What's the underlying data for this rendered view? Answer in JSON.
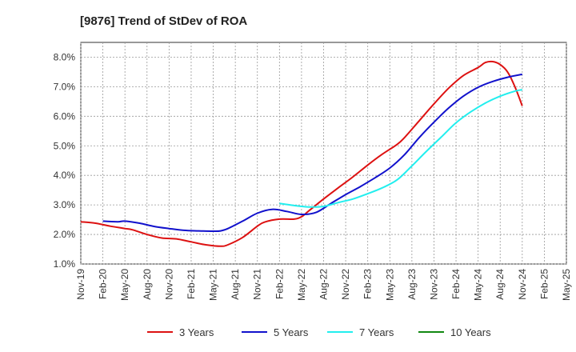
{
  "chart_data": {
    "type": "line",
    "title": "[9876]  Trend of StDev of ROA",
    "xlabel": "",
    "ylabel": "",
    "ylim": [
      1.0,
      8.5
    ],
    "y_ticks": [
      1.0,
      2.0,
      3.0,
      4.0,
      5.0,
      6.0,
      7.0,
      8.0
    ],
    "y_tick_labels": [
      "1.0%",
      "2.0%",
      "3.0%",
      "4.0%",
      "5.0%",
      "6.0%",
      "7.0%",
      "8.0%"
    ],
    "x_range": [
      "2019-11",
      "2025-05"
    ],
    "x_ticks": [
      "2019-11",
      "2020-02",
      "2020-05",
      "2020-08",
      "2020-11",
      "2021-02",
      "2021-05",
      "2021-08",
      "2021-11",
      "2022-02",
      "2022-05",
      "2022-08",
      "2022-11",
      "2023-02",
      "2023-05",
      "2023-08",
      "2023-11",
      "2024-02",
      "2024-05",
      "2024-08",
      "2024-11",
      "2025-02",
      "2025-05"
    ],
    "x_tick_labels": [
      "Nov-19",
      "Feb-20",
      "May-20",
      "Aug-20",
      "Nov-20",
      "Feb-21",
      "May-21",
      "Aug-21",
      "Nov-21",
      "Feb-22",
      "May-22",
      "Aug-22",
      "Nov-22",
      "Feb-23",
      "May-23",
      "Aug-23",
      "Nov-23",
      "Feb-24",
      "May-24",
      "Aug-24",
      "Nov-24",
      "Feb-25",
      "May-25"
    ],
    "grid": true,
    "legend_position": "bottom",
    "series": [
      {
        "name": "3 Years",
        "color": "#dd1111",
        "points": [
          [
            "2019-11",
            2.43
          ],
          [
            "2020-01",
            2.38
          ],
          [
            "2020-03",
            2.28
          ],
          [
            "2020-05",
            2.2
          ],
          [
            "2020-06",
            2.16
          ],
          [
            "2020-08",
            2.0
          ],
          [
            "2020-10",
            1.88
          ],
          [
            "2020-12",
            1.85
          ],
          [
            "2021-02",
            1.75
          ],
          [
            "2021-04",
            1.65
          ],
          [
            "2021-06",
            1.6
          ],
          [
            "2021-07",
            1.65
          ],
          [
            "2021-09",
            1.9
          ],
          [
            "2021-11",
            2.28
          ],
          [
            "2021-12",
            2.42
          ],
          [
            "2022-02",
            2.52
          ],
          [
            "2022-04",
            2.52
          ],
          [
            "2022-05",
            2.6
          ],
          [
            "2022-06",
            2.8
          ],
          [
            "2022-08",
            3.2
          ],
          [
            "2022-10",
            3.58
          ],
          [
            "2022-12",
            3.95
          ],
          [
            "2023-02",
            4.35
          ],
          [
            "2023-04",
            4.72
          ],
          [
            "2023-06",
            5.05
          ],
          [
            "2023-07",
            5.28
          ],
          [
            "2023-09",
            5.85
          ],
          [
            "2023-11",
            6.42
          ],
          [
            "2024-01",
            6.95
          ],
          [
            "2024-03",
            7.38
          ],
          [
            "2024-05",
            7.65
          ],
          [
            "2024-06",
            7.82
          ],
          [
            "2024-07",
            7.85
          ],
          [
            "2024-08",
            7.75
          ],
          [
            "2024-09",
            7.5
          ],
          [
            "2024-10",
            7.0
          ],
          [
            "2024-11",
            6.35
          ]
        ]
      },
      {
        "name": "5 Years",
        "color": "#1111cc",
        "points": [
          [
            "2020-02",
            2.45
          ],
          [
            "2020-04",
            2.43
          ],
          [
            "2020-05",
            2.45
          ],
          [
            "2020-07",
            2.38
          ],
          [
            "2020-09",
            2.27
          ],
          [
            "2020-11",
            2.2
          ],
          [
            "2021-01",
            2.14
          ],
          [
            "2021-03",
            2.12
          ],
          [
            "2021-05",
            2.11
          ],
          [
            "2021-06",
            2.12
          ],
          [
            "2021-07",
            2.2
          ],
          [
            "2021-09",
            2.45
          ],
          [
            "2021-11",
            2.72
          ],
          [
            "2022-01",
            2.85
          ],
          [
            "2022-03",
            2.78
          ],
          [
            "2022-05",
            2.68
          ],
          [
            "2022-07",
            2.75
          ],
          [
            "2022-09",
            3.05
          ],
          [
            "2022-11",
            3.35
          ],
          [
            "2023-01",
            3.62
          ],
          [
            "2023-03",
            3.92
          ],
          [
            "2023-05",
            4.25
          ],
          [
            "2023-07",
            4.7
          ],
          [
            "2023-09",
            5.28
          ],
          [
            "2023-11",
            5.8
          ],
          [
            "2024-01",
            6.28
          ],
          [
            "2024-03",
            6.68
          ],
          [
            "2024-05",
            6.98
          ],
          [
            "2024-07",
            7.18
          ],
          [
            "2024-09",
            7.32
          ],
          [
            "2024-11",
            7.42
          ]
        ]
      },
      {
        "name": "7 Years",
        "color": "#22eeee",
        "points": [
          [
            "2022-02",
            3.05
          ],
          [
            "2022-04",
            2.98
          ],
          [
            "2022-06",
            2.93
          ],
          [
            "2022-08",
            2.95
          ],
          [
            "2022-10",
            3.08
          ],
          [
            "2022-12",
            3.2
          ],
          [
            "2023-02",
            3.38
          ],
          [
            "2023-04",
            3.58
          ],
          [
            "2023-06",
            3.85
          ],
          [
            "2023-08",
            4.32
          ],
          [
            "2023-10",
            4.82
          ],
          [
            "2023-12",
            5.3
          ],
          [
            "2024-02",
            5.78
          ],
          [
            "2024-04",
            6.15
          ],
          [
            "2024-06",
            6.45
          ],
          [
            "2024-08",
            6.68
          ],
          [
            "2024-10",
            6.85
          ],
          [
            "2024-11",
            6.9
          ]
        ]
      },
      {
        "name": "10 Years",
        "color": "#118811",
        "points": []
      }
    ]
  }
}
